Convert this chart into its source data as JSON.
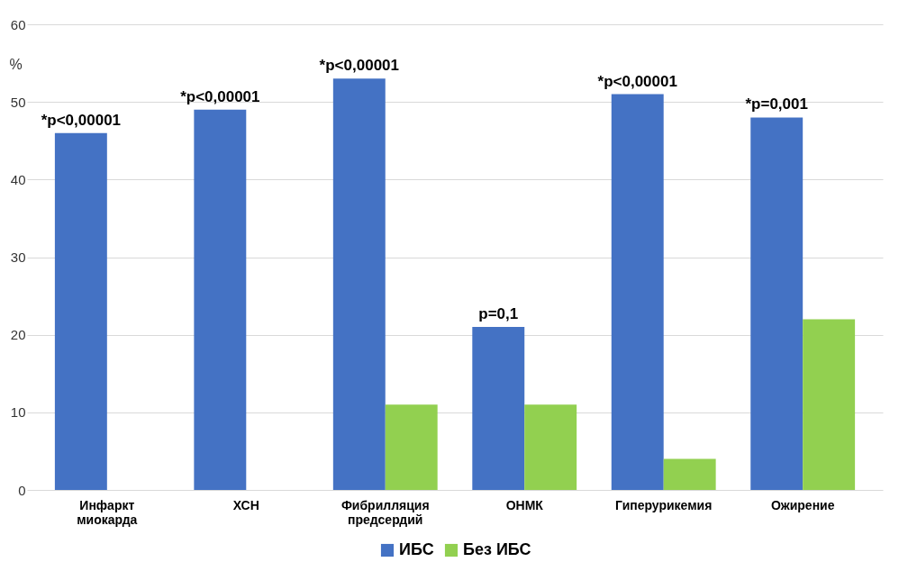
{
  "chart_data": {
    "type": "bar",
    "ylabel": "%",
    "categories": [
      "Инфаркт миокарда",
      "ХСН",
      "Фибрилляция предсердий",
      "ОНМК",
      "Гиперурикемия",
      "Ожирение"
    ],
    "series": [
      {
        "name": "ИБС",
        "color": "#4472c4",
        "values": [
          46,
          49,
          53,
          21,
          51,
          48
        ]
      },
      {
        "name": "Без ИБС",
        "color": "#92d050",
        "values": [
          0,
          0,
          11,
          11,
          4,
          22
        ]
      }
    ],
    "ylim": [
      0,
      60
    ],
    "yticks": [
      0,
      10,
      20,
      30,
      40,
      50,
      60
    ],
    "grid": "y",
    "legend": "bottom",
    "annotations": [
      {
        "text": "*p<0,00001",
        "x": "Инфаркт миокарда",
        "y": 46
      },
      {
        "text": "*p<0,00001",
        "x": "ХСН",
        "y": 49
      },
      {
        "text": "*p<0,00001",
        "x": "Фибрилляция предсердий",
        "y": 53
      },
      {
        "text": "p=0,1",
        "x": "ОНМК",
        "y": 21
      },
      {
        "text": "*p<0,00001",
        "x": "Гиперурикемия",
        "y": 51
      },
      {
        "text": "*p=0,001",
        "x": "Ожирение",
        "y": 48
      }
    ]
  }
}
